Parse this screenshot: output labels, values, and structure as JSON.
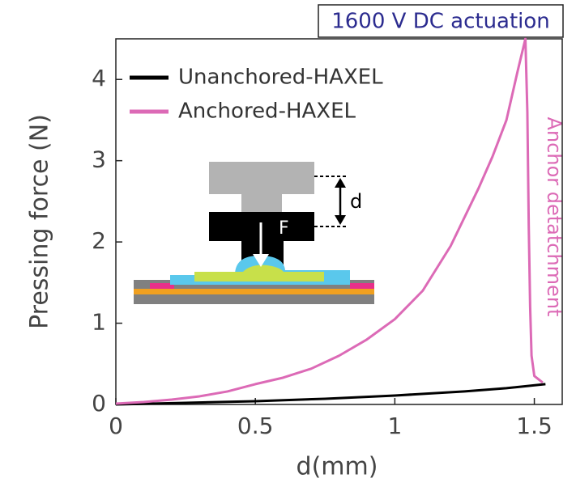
{
  "chart_data": {
    "type": "line",
    "title": "1600 V DC actuation",
    "x_label": "d(mm)",
    "y_label": "Pressing force (N)",
    "annotations": [
      "Anchor detatchment",
      "d",
      "F"
    ],
    "xlim": [
      0,
      1.6
    ],
    "xticks": [
      0,
      0.5,
      1,
      1.5
    ],
    "ylim": [
      0,
      4.5
    ],
    "yticks": [
      0,
      1,
      2,
      3,
      4
    ],
    "legend": "upper left",
    "series": [
      {
        "name": "Unanchored-HAXEL",
        "color": "#000000",
        "x": [
          0,
          0.25,
          0.5,
          0.75,
          1.0,
          1.25,
          1.4,
          1.54
        ],
        "values": [
          0,
          0.02,
          0.04,
          0.07,
          0.11,
          0.16,
          0.2,
          0.25
        ]
      },
      {
        "name": "Anchored-HAXEL",
        "color": "#dc6ab6",
        "x": [
          0,
          0.1,
          0.2,
          0.3,
          0.4,
          0.5,
          0.6,
          0.7,
          0.8,
          0.9,
          1.0,
          1.1,
          1.2,
          1.3,
          1.35,
          1.4,
          1.44,
          1.468,
          1.475,
          1.48,
          1.485,
          1.49,
          1.5,
          1.53
        ],
        "values": [
          0.01,
          0.03,
          0.06,
          0.1,
          0.16,
          0.25,
          0.33,
          0.44,
          0.6,
          0.8,
          1.05,
          1.4,
          1.95,
          2.66,
          3.05,
          3.5,
          4.1,
          4.5,
          3.6,
          2.2,
          1.2,
          0.6,
          0.35,
          0.27
        ]
      }
    ]
  }
}
